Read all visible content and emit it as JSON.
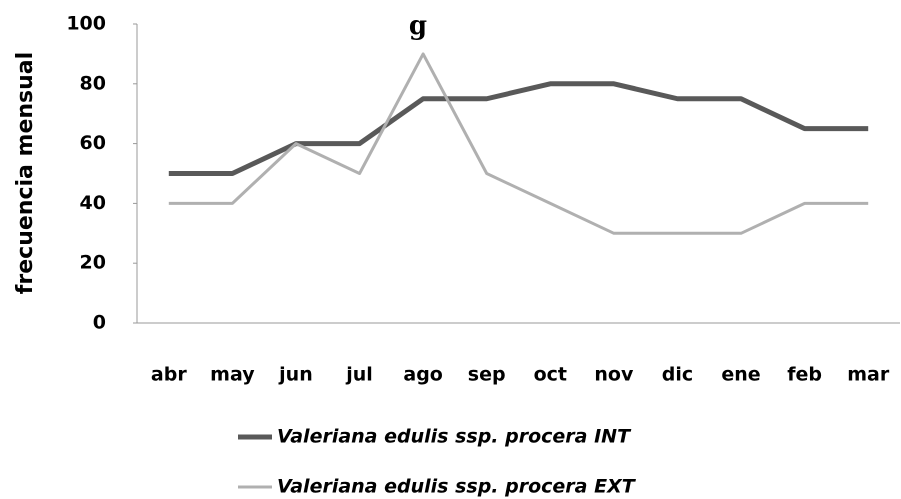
{
  "chart_data": {
    "type": "line",
    "title": "g",
    "y_label": "frecuencia mensual",
    "categories": [
      "abr",
      "may",
      "jun",
      "jul",
      "ago",
      "sep",
      "oct",
      "nov",
      "dic",
      "ene",
      "feb",
      "mar"
    ],
    "series": [
      {
        "name": "Valeriana edulis ssp. procera INT",
        "color": "#595959",
        "values": [
          50,
          50,
          60,
          60,
          75,
          75,
          80,
          80,
          75,
          75,
          65,
          65
        ]
      },
      {
        "name": "Valeriana edulis ssp. procera EXT",
        "color": "#b0b0b0",
        "values": [
          40,
          40,
          60,
          50,
          90,
          50,
          40,
          30,
          30,
          30,
          40,
          40
        ]
      }
    ],
    "ylim": [
      0,
      100
    ],
    "yticks": [
      0,
      20,
      40,
      60,
      80,
      100
    ],
    "grid": false
  }
}
